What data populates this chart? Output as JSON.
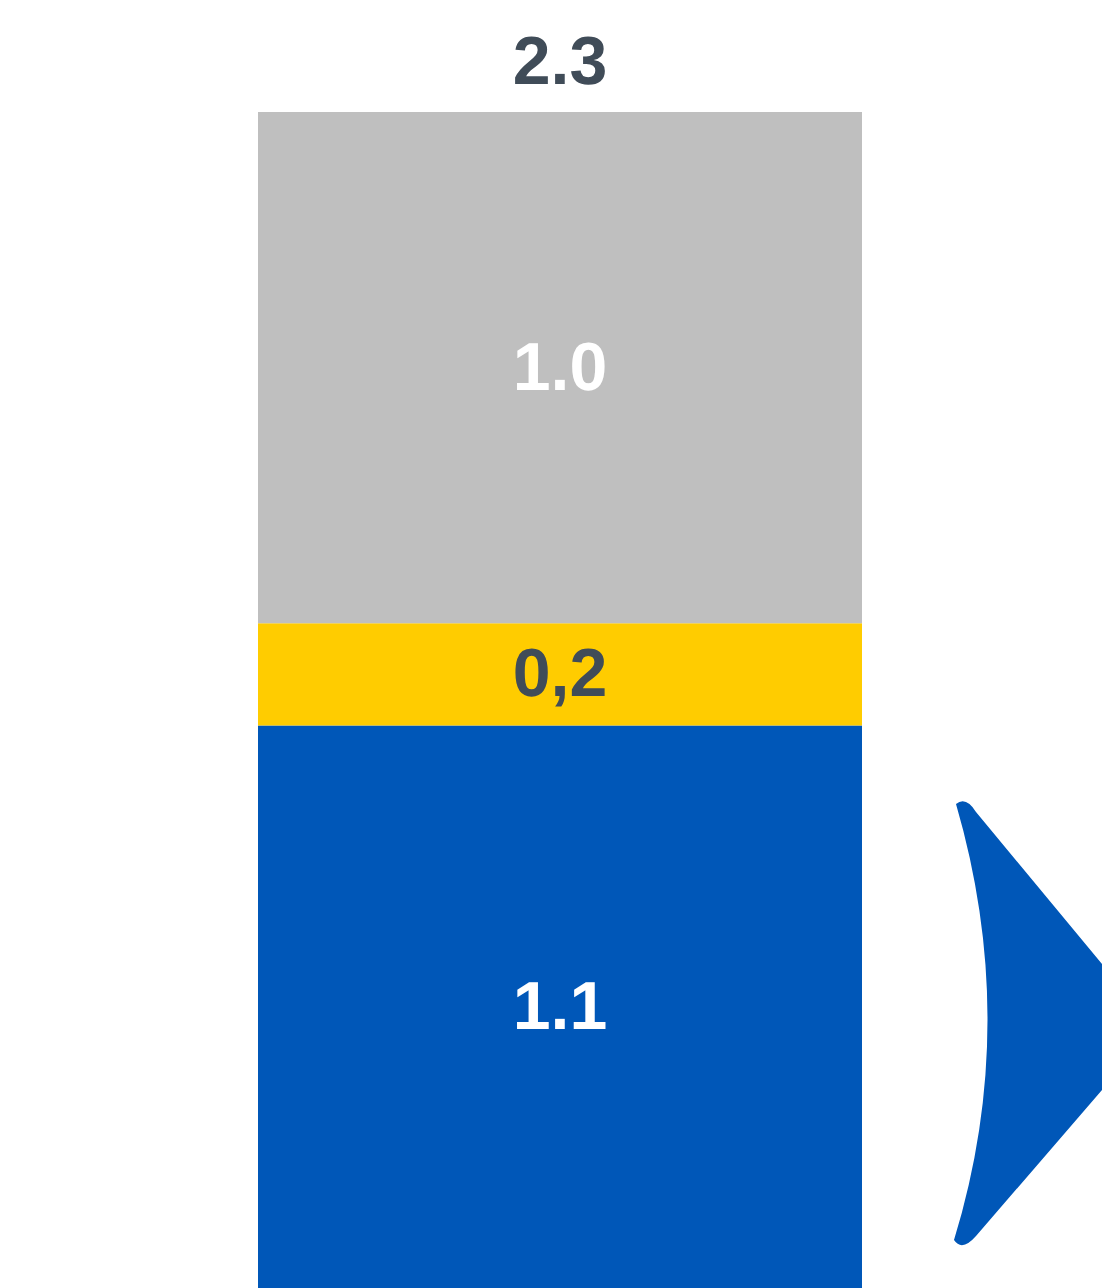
{
  "chart_data": {
    "type": "bar",
    "stacked": true,
    "categories": [
      null
    ],
    "series": [
      {
        "color": "#0057b8",
        "values": [
          1.1
        ],
        "value_labels": [
          "1.1"
        ]
      },
      {
        "color": "#ffcc00",
        "values": [
          0.2
        ],
        "value_labels": [
          "0,2"
        ]
      },
      {
        "color": "#bfbfbf",
        "values": [
          1.0
        ],
        "value_labels": [
          "1.0"
        ]
      }
    ],
    "totals": [
      "2.3"
    ]
  }
}
